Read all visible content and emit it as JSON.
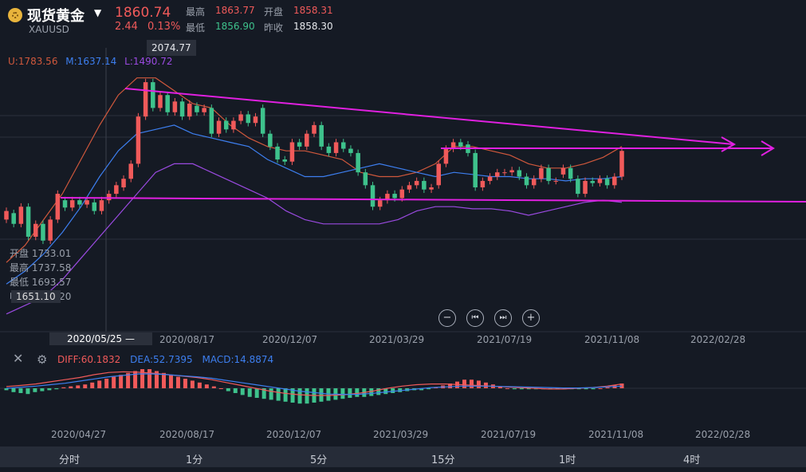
{
  "header": {
    "title": "现货黄金",
    "symbol": "XAUUSD",
    "price": "1860.74",
    "change": "2.44",
    "change_pct": "0.13%",
    "high_label": "最高",
    "high": "1863.77",
    "open_label": "开盘",
    "open": "1858.31",
    "low_label": "最低",
    "low": "1856.90",
    "prev_label": "昨收",
    "prev": "1858.30"
  },
  "colors": {
    "up": "#f05a5a",
    "down": "#3ec28c",
    "trend": "#e020e0",
    "ma_u": "#d0583c",
    "ma_m": "#3d7ff0",
    "ma_l": "#9a4ae0",
    "diff": "#f05a5a",
    "dea": "#3d7ff0"
  },
  "overlay": {
    "peak_label": "2074.77",
    "ma_u": "U:1783.56",
    "ma_m": "M:1637.14",
    "ma_l": "L:1490.72",
    "ohlc_open": "开盘 1733.01",
    "ohlc_high": "最高 1737.58",
    "ohlc_low": "最低 1693.57",
    "ohlc_close_partial": "收盘 1711.20",
    "close_tip": "1651.10"
  },
  "x_axis_main": [
    "2020/08/17",
    "2020/12/07",
    "2021/03/29",
    "2021/07/19",
    "2021/11/08",
    "2022/02/28"
  ],
  "date_tip": "2020/05/25 —",
  "x_axis_sub": [
    "2020/04/27",
    "2020/08/17",
    "2020/12/07",
    "2021/03/29",
    "2021/07/19",
    "2021/11/08",
    "2022/02/28"
  ],
  "macd": {
    "diff": "DIFF:60.1832",
    "dea": "DEA:52.7395",
    "macd": "MACD:14.8874"
  },
  "icons": {
    "close": "close-icon",
    "gear": "gear-icon",
    "zoom_out": "zoom-out-icon",
    "prev": "step-back-icon",
    "next": "step-forward-icon",
    "zoom_in": "zoom-in-icon"
  },
  "periods": [
    "分时",
    "1分",
    "5分",
    "15分",
    "1时",
    "4时"
  ],
  "chart_data": {
    "type": "candlestick",
    "symbol": "XAUUSD",
    "y_range": [
      1450,
      2100
    ],
    "peak_high": 2074.77,
    "candles": [
      {
        "o": 1700,
        "c": 1720
      },
      {
        "o": 1715,
        "c": 1690
      },
      {
        "o": 1690,
        "c": 1730
      },
      {
        "o": 1730,
        "c": 1660
      },
      {
        "o": 1660,
        "c": 1690
      },
      {
        "o": 1690,
        "c": 1651
      },
      {
        "o": 1651,
        "c": 1700
      },
      {
        "o": 1700,
        "c": 1760
      },
      {
        "o": 1745,
        "c": 1728
      },
      {
        "o": 1728,
        "c": 1745
      },
      {
        "o": 1745,
        "c": 1735
      },
      {
        "o": 1735,
        "c": 1745
      },
      {
        "o": 1740,
        "c": 1720
      },
      {
        "o": 1720,
        "c": 1745
      },
      {
        "o": 1745,
        "c": 1760
      },
      {
        "o": 1760,
        "c": 1780
      },
      {
        "o": 1775,
        "c": 1795
      },
      {
        "o": 1795,
        "c": 1830
      },
      {
        "o": 1830,
        "c": 1940
      },
      {
        "o": 1940,
        "c": 2020
      },
      {
        "o": 2020,
        "c": 1960
      },
      {
        "o": 1960,
        "c": 1990
      },
      {
        "o": 1990,
        "c": 1950
      },
      {
        "o": 1950,
        "c": 1975
      },
      {
        "o": 1975,
        "c": 1940
      },
      {
        "o": 1940,
        "c": 1970
      },
      {
        "o": 1965,
        "c": 1950
      },
      {
        "o": 1950,
        "c": 1960
      },
      {
        "o": 1960,
        "c": 1900
      },
      {
        "o": 1900,
        "c": 1930
      },
      {
        "o": 1930,
        "c": 1910
      },
      {
        "o": 1910,
        "c": 1930
      },
      {
        "o": 1930,
        "c": 1945
      },
      {
        "o": 1945,
        "c": 1925
      },
      {
        "o": 1925,
        "c": 1940
      },
      {
        "o": 1960,
        "c": 1900
      },
      {
        "o": 1900,
        "c": 1870
      },
      {
        "o": 1870,
        "c": 1840
      },
      {
        "o": 1840,
        "c": 1835
      },
      {
        "o": 1835,
        "c": 1880
      },
      {
        "o": 1880,
        "c": 1870
      },
      {
        "o": 1870,
        "c": 1900
      },
      {
        "o": 1900,
        "c": 1920
      },
      {
        "o": 1920,
        "c": 1870
      },
      {
        "o": 1870,
        "c": 1855
      },
      {
        "o": 1855,
        "c": 1880
      },
      {
        "o": 1880,
        "c": 1865
      },
      {
        "o": 1865,
        "c": 1855
      },
      {
        "o": 1855,
        "c": 1810
      },
      {
        "o": 1810,
        "c": 1780
      },
      {
        "o": 1780,
        "c": 1730
      },
      {
        "o": 1730,
        "c": 1745
      },
      {
        "o": 1745,
        "c": 1760
      },
      {
        "o": 1760,
        "c": 1750
      },
      {
        "o": 1750,
        "c": 1770
      },
      {
        "o": 1770,
        "c": 1780
      },
      {
        "o": 1780,
        "c": 1790
      },
      {
        "o": 1790,
        "c": 1770
      },
      {
        "o": 1770,
        "c": 1775
      },
      {
        "o": 1780,
        "c": 1830
      },
      {
        "o": 1830,
        "c": 1865
      },
      {
        "o": 1865,
        "c": 1880
      },
      {
        "o": 1880,
        "c": 1870
      },
      {
        "o": 1875,
        "c": 1855
      },
      {
        "o": 1855,
        "c": 1775
      },
      {
        "o": 1775,
        "c": 1790
      },
      {
        "o": 1790,
        "c": 1800
      },
      {
        "o": 1800,
        "c": 1810
      },
      {
        "o": 1810,
        "c": 1810
      },
      {
        "o": 1810,
        "c": 1815
      },
      {
        "o": 1815,
        "c": 1800
      },
      {
        "o": 1800,
        "c": 1780
      },
      {
        "o": 1780,
        "c": 1795
      },
      {
        "o": 1795,
        "c": 1820
      },
      {
        "o": 1820,
        "c": 1790
      },
      {
        "o": 1790,
        "c": 1790
      },
      {
        "o": 1805,
        "c": 1820
      },
      {
        "o": 1820,
        "c": 1795
      },
      {
        "o": 1795,
        "c": 1760
      },
      {
        "o": 1760,
        "c": 1790
      },
      {
        "o": 1790,
        "c": 1785
      },
      {
        "o": 1785,
        "c": 1795
      },
      {
        "o": 1795,
        "c": 1780
      },
      {
        "o": 1780,
        "c": 1800
      },
      {
        "o": 1800,
        "c": 1860
      }
    ],
    "ma_upper": [
      1600,
      1640,
      1700,
      1760,
      1840,
      1920,
      1990,
      2030,
      2030,
      2000,
      1970,
      1960,
      1920,
      1890,
      1870,
      1860,
      1860,
      1850,
      1840,
      1810,
      1800,
      1800,
      1810,
      1830,
      1870,
      1870,
      1860,
      1850,
      1830,
      1820,
      1820,
      1830,
      1845,
      1870
    ],
    "ma_middle": [
      1550,
      1580,
      1620,
      1670,
      1730,
      1800,
      1860,
      1900,
      1910,
      1920,
      1900,
      1890,
      1880,
      1870,
      1840,
      1820,
      1800,
      1800,
      1810,
      1820,
      1830,
      1820,
      1810,
      1800,
      1810,
      1805,
      1800,
      1800,
      1795,
      1795,
      1790,
      1795,
      1795,
      1800
    ],
    "ma_lower": [
      1480,
      1500,
      1520,
      1560,
      1610,
      1660,
      1710,
      1760,
      1810,
      1830,
      1830,
      1810,
      1790,
      1770,
      1750,
      1720,
      1700,
      1690,
      1690,
      1690,
      1690,
      1700,
      1720,
      1730,
      1730,
      1725,
      1725,
      1720,
      1710,
      1720,
      1730,
      1740,
      1745,
      1740
    ],
    "trendlines": [
      {
        "from": [
          0,
          2070
        ],
        "to": [
          1,
          1980
        ]
      },
      {
        "from": [
          0,
          1690
        ],
        "to": [
          1,
          1685
        ]
      },
      {
        "from": [
          0,
          1910
        ],
        "to": [
          1,
          1910
        ]
      }
    ],
    "macd_hist": [
      -2,
      -4,
      -5,
      -6,
      -4,
      -3,
      -2,
      -1,
      1,
      2,
      3,
      4,
      6,
      8,
      10,
      12,
      14,
      16,
      18,
      20,
      20,
      18,
      16,
      14,
      12,
      10,
      8,
      6,
      4,
      2,
      0,
      -3,
      -5,
      -7,
      -9,
      -10,
      -11,
      -12,
      -13,
      -14,
      -15,
      -16,
      -16,
      -15,
      -14,
      -13,
      -12,
      -11,
      -10,
      -9,
      -9,
      -8,
      -7,
      -6,
      -5,
      -4,
      -3,
      -2,
      -2,
      -1,
      1,
      3,
      5,
      7,
      9,
      9,
      8,
      6,
      4,
      2,
      0,
      -1,
      -1,
      -1,
      -1,
      -1,
      -1,
      -1,
      -1,
      -1,
      -1,
      -1,
      -1,
      0,
      1,
      3,
      5
    ],
    "macd_diff": [
      5,
      8,
      12,
      18,
      24,
      30,
      38,
      44,
      46,
      45,
      42,
      38,
      34,
      30,
      24,
      16,
      8,
      0,
      -8,
      -14,
      -18,
      -20,
      -20,
      -18,
      -14,
      -8,
      0,
      6,
      10,
      12,
      12,
      10,
      8,
      6,
      4,
      2,
      0,
      -2,
      -2,
      0,
      2,
      6,
      12
    ],
    "macd_dea": [
      0,
      3,
      6,
      10,
      14,
      20,
      26,
      32,
      36,
      40,
      40,
      38,
      35,
      32,
      28,
      22,
      16,
      10,
      4,
      -2,
      -8,
      -12,
      -16,
      -17,
      -17,
      -14,
      -10,
      -6,
      -2,
      2,
      4,
      6,
      6,
      6,
      5,
      4,
      3,
      2,
      1,
      1,
      2,
      4,
      6
    ]
  }
}
